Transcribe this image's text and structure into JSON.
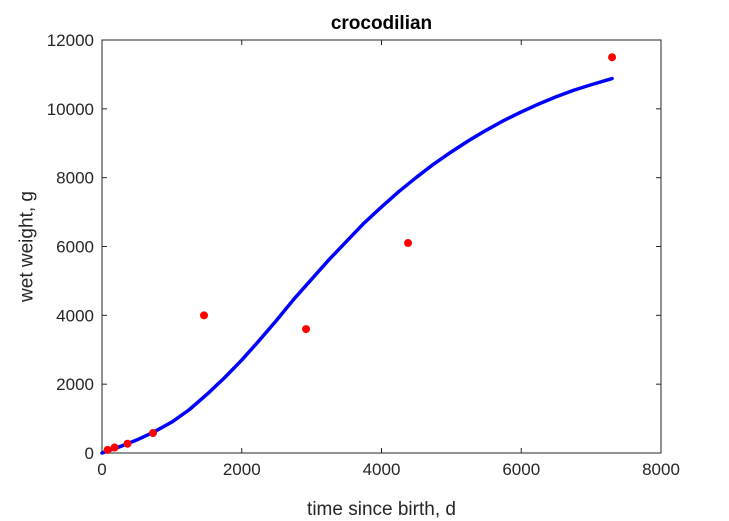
{
  "chart_data": {
    "type": "line",
    "title": "crocodilian",
    "xlabel": "time since birth, d",
    "ylabel": "wet weight, g",
    "xlim": [
      0,
      8000
    ],
    "ylim": [
      0,
      12000
    ],
    "xticks": [
      0,
      2000,
      4000,
      6000,
      8000
    ],
    "yticks": [
      0,
      2000,
      4000,
      6000,
      8000,
      10000,
      12000
    ],
    "grid": false,
    "box": true,
    "series": [
      {
        "kind": "line",
        "color": "#0000ff",
        "x": [
          0,
          250,
          500,
          750,
          1000,
          1250,
          1500,
          1750,
          2000,
          2250,
          2500,
          2750,
          3000,
          3250,
          3500,
          3750,
          4000,
          4250,
          4500,
          4750,
          5000,
          5250,
          5500,
          5750,
          6000,
          6250,
          6500,
          6750,
          7000,
          7300
        ],
        "y": [
          0,
          180,
          380,
          620,
          900,
          1260,
          1700,
          2180,
          2700,
          3270,
          3860,
          4480,
          5050,
          5620,
          6150,
          6680,
          7150,
          7600,
          8010,
          8400,
          8750,
          9080,
          9380,
          9660,
          9910,
          10140,
          10350,
          10540,
          10700,
          10880
        ]
      },
      {
        "kind": "scatter",
        "color": "#ff0000",
        "x": [
          80,
          180,
          365,
          730,
          1460,
          2920,
          4380,
          7300
        ],
        "y": [
          90,
          160,
          270,
          580,
          4000,
          3600,
          6100,
          11500
        ]
      }
    ]
  }
}
